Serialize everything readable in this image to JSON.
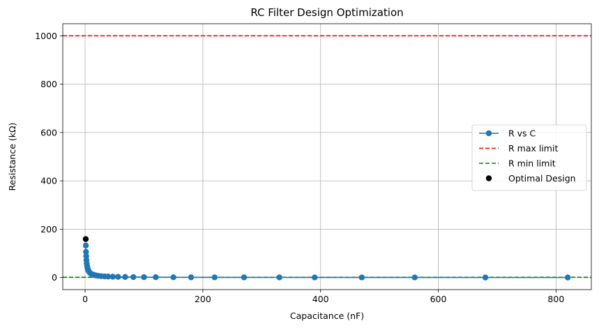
{
  "chart_data": {
    "type": "line",
    "title": "RC Filter Design Optimization",
    "xlabel": "Capacitance (nF)",
    "ylabel": "Resistance (kΩ)",
    "xlim": [
      -38,
      860
    ],
    "ylim": [
      -50,
      1050
    ],
    "xticks": [
      0,
      200,
      400,
      600,
      800
    ],
    "yticks": [
      0,
      200,
      400,
      600,
      800,
      1000
    ],
    "grid": true,
    "legend_position": "center-right",
    "series": [
      {
        "name": "R vs C",
        "kind": "line-marker",
        "color": "#1f77b4",
        "x": [
          1.2,
          1.5,
          1.8,
          2.2,
          2.7,
          3.3,
          3.9,
          4.7,
          5.6,
          6.8,
          8.2,
          10,
          12,
          15,
          18,
          22,
          27,
          33,
          39,
          47,
          56,
          68,
          82,
          100,
          120,
          150,
          180,
          220,
          270,
          330,
          390,
          470,
          560,
          680,
          820
        ],
        "y": [
          132.6,
          106.1,
          88.4,
          72.3,
          58.9,
          48.2,
          40.8,
          33.9,
          28.4,
          23.4,
          19.4,
          15.9,
          13.3,
          10.6,
          8.8,
          7.2,
          5.9,
          4.8,
          4.1,
          3.4,
          2.8,
          2.3,
          1.9,
          1.6,
          1.3,
          1.1,
          0.9,
          0.7,
          0.6,
          0.5,
          0.4,
          0.3,
          0.3,
          0.2,
          0.2
        ]
      },
      {
        "name": "R max limit",
        "kind": "hline",
        "color": "#ff0000",
        "y": 1000
      },
      {
        "name": "R min limit",
        "kind": "hline",
        "color": "#008000",
        "y": 1
      },
      {
        "name": "Optimal Design",
        "kind": "scatter",
        "color": "#000000",
        "x": [
          1
        ],
        "y": [
          159.2
        ]
      }
    ]
  }
}
